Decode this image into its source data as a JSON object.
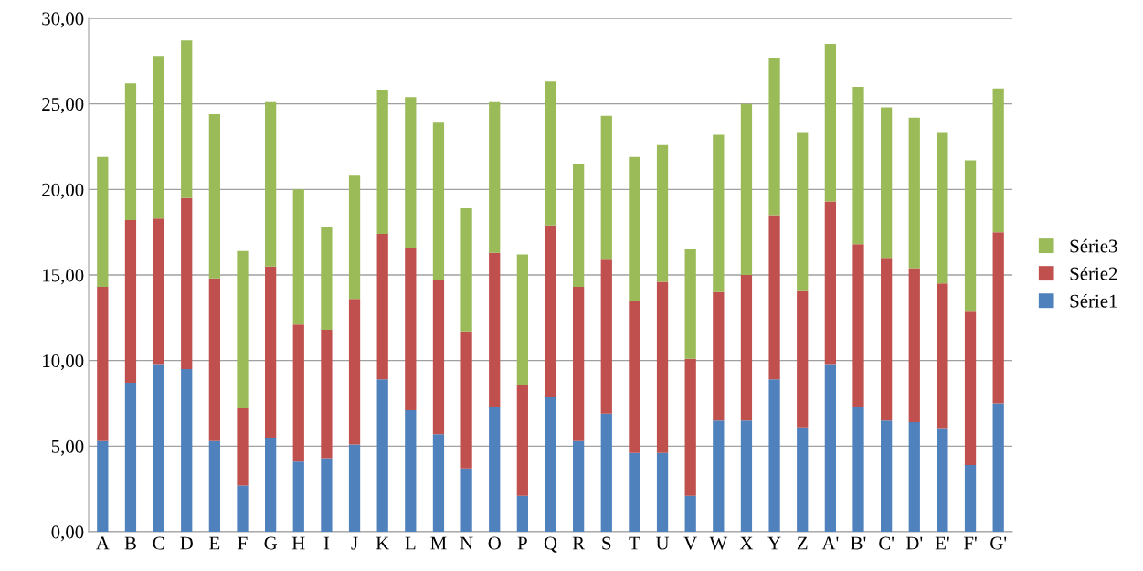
{
  "chart_data": {
    "type": "bar",
    "stacked": true,
    "categories": [
      "A",
      "B",
      "C",
      "D",
      "E",
      "F",
      "G",
      "H",
      "I",
      "J",
      "K",
      "L",
      "M",
      "N",
      "O",
      "P",
      "Q",
      "R",
      "S",
      "T",
      "U",
      "V",
      "W",
      "X",
      "Y",
      "Z",
      "A'",
      "B'",
      "C'",
      "D'",
      "E'",
      "F'",
      "G'"
    ],
    "series": [
      {
        "name": "Série1",
        "color": "#4f81bd",
        "values": [
          5.3,
          8.7,
          9.8,
          9.5,
          5.3,
          2.7,
          5.5,
          4.1,
          4.3,
          5.1,
          8.9,
          7.1,
          5.7,
          3.7,
          7.3,
          2.1,
          7.9,
          5.3,
          6.9,
          4.6,
          4.6,
          2.1,
          6.5,
          6.5,
          8.9,
          6.1,
          9.8,
          7.3,
          6.5,
          6.4,
          6.0,
          3.9,
          7.5
        ]
      },
      {
        "name": "Série2",
        "color": "#c0504d",
        "values": [
          9.0,
          9.5,
          8.5,
          10.0,
          9.5,
          4.5,
          10.0,
          8.0,
          7.5,
          8.5,
          8.5,
          9.5,
          9.0,
          8.0,
          9.0,
          6.5,
          10.0,
          9.0,
          9.0,
          8.9,
          10.0,
          8.0,
          7.5,
          8.5,
          9.6,
          8.0,
          9.5,
          9.5,
          9.5,
          9.0,
          8.5,
          9.0,
          10.0
        ]
      },
      {
        "name": "Série3",
        "color": "#9bbb59",
        "values": [
          7.6,
          8.0,
          9.5,
          9.2,
          9.6,
          9.2,
          9.6,
          7.9,
          6.0,
          7.2,
          8.4,
          8.8,
          9.2,
          7.2,
          8.8,
          7.6,
          8.4,
          7.2,
          8.4,
          8.4,
          8.0,
          6.4,
          9.2,
          10.0,
          9.2,
          9.2,
          9.2,
          9.2,
          8.8,
          8.8,
          8.8,
          8.8,
          8.4
        ]
      }
    ],
    "ylim": [
      0,
      30
    ],
    "yticks": [
      {
        "value": 0,
        "label": "0,00"
      },
      {
        "value": 5,
        "label": "5,00"
      },
      {
        "value": 10,
        "label": "10,00"
      },
      {
        "value": 15,
        "label": "15,00"
      },
      {
        "value": 20,
        "label": "20,00"
      },
      {
        "value": 25,
        "label": "25,00"
      },
      {
        "value": 30,
        "label": "30,00"
      }
    ],
    "grid": "y",
    "legend": "right"
  }
}
